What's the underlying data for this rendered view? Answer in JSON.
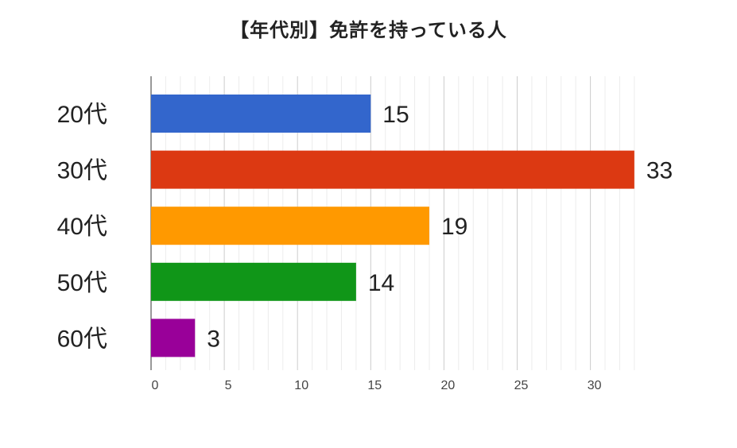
{
  "chart_data": {
    "type": "bar",
    "orientation": "horizontal",
    "title": "【年代別】免許を持っている人",
    "categories": [
      "20代",
      "30代",
      "40代",
      "50代",
      "60代"
    ],
    "values": [
      15,
      33,
      19,
      14,
      3
    ],
    "data_labels": [
      "15",
      "33",
      "19",
      "14",
      "3"
    ],
    "colors": [
      "#3366cc",
      "#dc3912",
      "#ff9900",
      "#109618",
      "#990099"
    ],
    "xlim": [
      0,
      33
    ],
    "xticks": [
      0,
      5,
      10,
      15,
      20,
      25,
      30
    ],
    "xtick_labels": [
      "0",
      "5",
      "10",
      "15",
      "20",
      "25",
      "30"
    ],
    "grid": true,
    "legend": "none"
  }
}
